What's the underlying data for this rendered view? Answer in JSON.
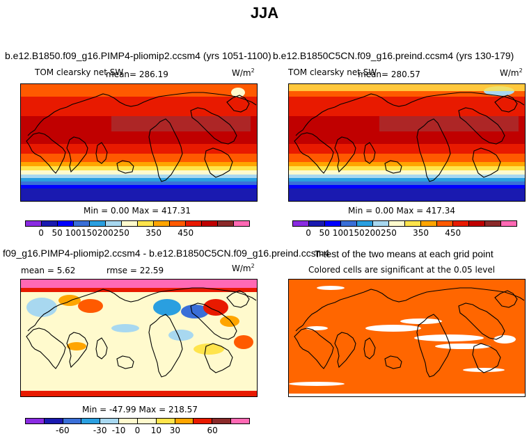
{
  "page_title": "JJA",
  "panels": [
    {
      "case": "b.e12.B1850.f09_g16.PIMP4-pliomip2.ccsm4 (yrs 1051-1100)",
      "variable": "TOM clearsky net SW",
      "mean": "mean= 286.19",
      "units": "W/m",
      "units_exp": "2",
      "minmax": "Min =   0.00 Max = 417.31",
      "colorbar_ticks": [
        "0",
        "50",
        "100",
        "150",
        "200",
        "250",
        "350",
        "450"
      ]
    },
    {
      "case": "b.e12.B1850C5CN.f09_g16.preind.ccsm4 (yrs 130-179)",
      "variable": "TOM clearsky net SW",
      "mean": "mean= 280.57",
      "units": "W/m",
      "units_exp": "2",
      "minmax": "Min =   0.00 Max = 417.34",
      "colorbar_ticks": [
        "0",
        "50",
        "100",
        "150",
        "200",
        "250",
        "350",
        "450"
      ]
    },
    {
      "case": "f09_g16.PIMP4-pliomip2.ccsm4 - b.e12.B1850C5CN.f09_g16.preind.ccsm4",
      "mean": "mean =   5.62",
      "rmse": "rmse =  22.59",
      "units": "W/m",
      "units_exp": "2",
      "minmax": "Min = -47.99 Max = 218.57",
      "colorbar_ticks": [
        "-60",
        "-30",
        "-10",
        "0",
        "10",
        "30",
        "60"
      ]
    },
    {
      "title": "T-test of the two means at each grid point",
      "subtitle": "Colored cells are significant at the 0.05 level"
    }
  ],
  "colors": {
    "abs_scale": [
      "#8a2be2",
      "#1a1ab0",
      "#0000ff",
      "#3a6fd8",
      "#2a9fe0",
      "#a8d8f0",
      "#fffacd",
      "#ffe44c",
      "#ffa500",
      "#ff5a00",
      "#e81a00",
      "#c00000",
      "#8b2a2a",
      "#ff69b4"
    ],
    "diff_scale": [
      "#8a2be2",
      "#1a1ab0",
      "#3a6fd8",
      "#2a9fe0",
      "#a8d8f0",
      "#fffacd",
      "#fffacd",
      "#ffe44c",
      "#ffa500",
      "#e81a00",
      "#8b2a2a",
      "#ff69b4"
    ],
    "ttest": "#ff6600"
  }
}
